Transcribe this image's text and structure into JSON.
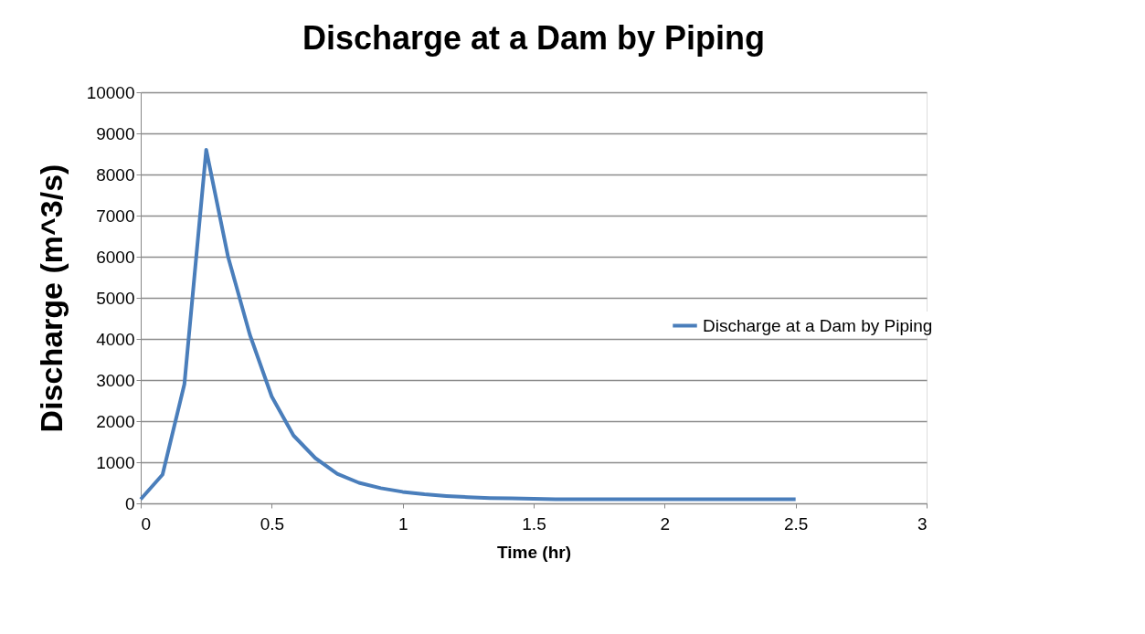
{
  "chart_data": {
    "type": "line",
    "title": "Discharge at a Dam by Piping",
    "xlabel": "Time (hr)",
    "ylabel": "Discharge (m^3/s)",
    "x": [
      0,
      0.0833,
      0.1667,
      0.25,
      0.3333,
      0.4167,
      0.5,
      0.5833,
      0.6667,
      0.75,
      0.8333,
      0.9167,
      1.0,
      1.0833,
      1.1667,
      1.25,
      1.3333,
      1.4167,
      1.5,
      1.5833,
      1.6667,
      1.75,
      1.8333,
      1.9167,
      2.0,
      2.0833,
      2.1667,
      2.25,
      2.3333,
      2.4167,
      2.5
    ],
    "series": [
      {
        "name": "Discharge at a Dam by Piping",
        "color": "#4a7ebb",
        "values": [
          100,
          700,
          2900,
          8600,
          6000,
          4100,
          2600,
          1650,
          1100,
          720,
          500,
          370,
          280,
          220,
          180,
          150,
          130,
          120,
          110,
          100,
          100,
          100,
          100,
          100,
          100,
          100,
          100,
          100,
          100,
          100,
          100
        ]
      }
    ],
    "xlim": [
      0,
      3
    ],
    "xticks": [
      0,
      0.5,
      1,
      1.5,
      2,
      2.5,
      3
    ],
    "ylim": [
      0,
      10000
    ],
    "yticks": [
      0,
      1000,
      2000,
      3000,
      4000,
      5000,
      6000,
      7000,
      8000,
      9000,
      10000
    ],
    "grid": "y",
    "legend": "right",
    "marker": "none",
    "line_style": "solid"
  }
}
